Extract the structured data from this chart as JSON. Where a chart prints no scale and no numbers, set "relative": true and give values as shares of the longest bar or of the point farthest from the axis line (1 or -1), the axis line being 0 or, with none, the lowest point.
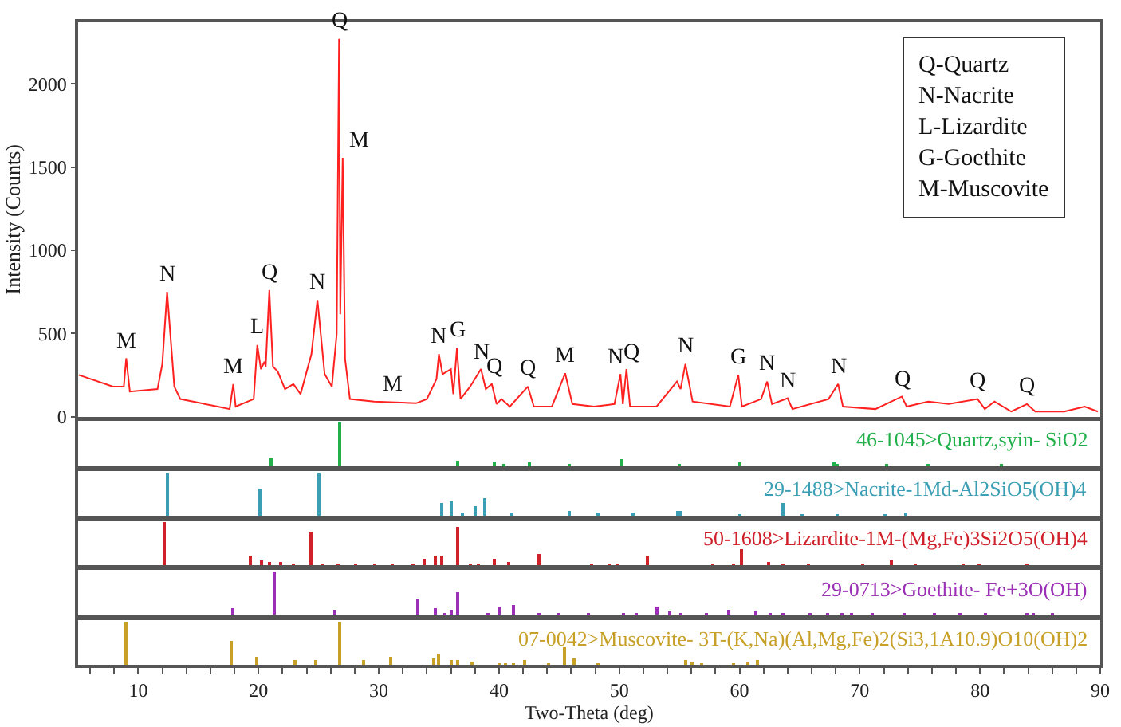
{
  "chart_data": [
    {
      "type": "line",
      "ylabel": "Intensity (Counts)",
      "xlim": [
        5,
        90
      ],
      "ylim": [
        0,
        2370
      ],
      "yticks": [
        0,
        500,
        1000,
        1500,
        2000
      ],
      "tick_labels": "y",
      "marker": "none",
      "line_style": "solid",
      "x": [
        5.05,
        7.9,
        8.8,
        9.0,
        9.3,
        11.6,
        12.0,
        12.4,
        13.0,
        13.5,
        16.6,
        17.6,
        17.9,
        18.1,
        19.6,
        19.9,
        20.2,
        20.5,
        20.6,
        20.9,
        21.2,
        21.6,
        22.2,
        22.9,
        23.5,
        24.4,
        24.9,
        25.5,
        26.1,
        26.5,
        26.7,
        26.8,
        27.0,
        27.2,
        27.6,
        29.6,
        33.1,
        34.0,
        34.8,
        35.0,
        35.3,
        36.0,
        36.2,
        36.5,
        36.8,
        37.6,
        38.5,
        38.9,
        39.4,
        39.8,
        40.2,
        40.9,
        42.4,
        42.9,
        44.4,
        45.5,
        46.1,
        47.9,
        49.6,
        50.1,
        50.3,
        50.6,
        50.9,
        53.1,
        54.8,
        55.1,
        55.5,
        56.1,
        59.2,
        59.9,
        60.2,
        61.8,
        62.3,
        62.7,
        64.0,
        64.4,
        67.4,
        68.2,
        68.6,
        71.3,
        73.5,
        73.9,
        75.7,
        77.4,
        79.8,
        80.4,
        81.2,
        82.6,
        83.9,
        84.6,
        87.0,
        88.7,
        89.8
      ],
      "series": [
        {
          "color": "#ff2020",
          "values": [
            250,
            180,
            180,
            350,
            150,
            165,
            315,
            750,
            180,
            105,
            60,
            45,
            195,
            60,
            105,
            430,
            285,
            330,
            300,
            760,
            300,
            270,
            165,
            195,
            135,
            375,
            700,
            255,
            180,
            495,
            2270,
            615,
            1555,
            345,
            105,
            90,
            80,
            105,
            225,
            375,
            255,
            285,
            135,
            410,
            105,
            180,
            285,
            165,
            195,
            75,
            105,
            60,
            180,
            60,
            60,
            260,
            75,
            60,
            75,
            255,
            75,
            285,
            60,
            60,
            210,
            165,
            315,
            90,
            60,
            250,
            60,
            105,
            210,
            75,
            110,
            45,
            105,
            195,
            60,
            45,
            120,
            60,
            90,
            75,
            105,
            45,
            90,
            30,
            75,
            30,
            30,
            60,
            30
          ]
        }
      ],
      "annotations": [
        {
          "text": "M",
          "x": 9.0,
          "y": 350
        },
        {
          "text": "N",
          "x": 12.4,
          "y": 750
        },
        {
          "text": "M",
          "x": 17.9,
          "y": 195
        },
        {
          "text": "L",
          "x": 19.9,
          "y": 430
        },
        {
          "text": "Q",
          "x": 20.9,
          "y": 760
        },
        {
          "text": "N",
          "x": 24.9,
          "y": 700
        },
        {
          "text": "Q",
          "x": 26.7,
          "y": 2270
        },
        {
          "text": "M",
          "x": 27.0,
          "y": 1555
        },
        {
          "text": "M",
          "x": 31.2,
          "y": 90
        },
        {
          "text": "N",
          "x": 35.0,
          "y": 375
        },
        {
          "text": "G",
          "x": 36.5,
          "y": 410
        },
        {
          "text": "N",
          "x": 38.5,
          "y": 285
        },
        {
          "text": "Q",
          "x": 39.6,
          "y": 195
        },
        {
          "text": "Q",
          "x": 42.4,
          "y": 180
        },
        {
          "text": "M",
          "x": 45.5,
          "y": 260
        },
        {
          "text": "N",
          "x": 49.7,
          "y": 255
        },
        {
          "text": "Q",
          "x": 51.0,
          "y": 285
        },
        {
          "text": "N",
          "x": 55.5,
          "y": 315
        },
        {
          "text": "G",
          "x": 59.9,
          "y": 250
        },
        {
          "text": "N",
          "x": 62.3,
          "y": 210
        },
        {
          "text": "N",
          "x": 64.0,
          "y": 110
        },
        {
          "text": "N",
          "x": 68.2,
          "y": 195
        },
        {
          "text": "Q",
          "x": 73.5,
          "y": 120
        },
        {
          "text": "Q",
          "x": 79.8,
          "y": 105
        },
        {
          "text": "Q",
          "x": 83.9,
          "y": 75
        },
        "Q-Quartz\nN-Nacrite\nL-Lizardite\nG-Goethite\nM-Muscovite"
      ]
    },
    {
      "type": "bar",
      "relative": true,
      "xlim": [
        5,
        90
      ],
      "tick_labels": false,
      "annotations": [
        "46-1045>Quartz,syin- SiO2"
      ],
      "x": [
        21.1,
        26.8,
        36.6,
        39.6,
        40.4,
        42.6,
        45.9,
        50.2,
        55.0,
        60.0,
        67.9,
        68.2,
        72.2,
        75.7,
        81.8
      ],
      "series": [
        {
          "color": "#22b04a",
          "values": [
            0.2,
            1.0,
            0.1,
            0.08,
            0.05,
            0.07,
            0.05,
            0.15,
            0.05,
            0.08,
            0.08,
            0.06,
            0.03,
            0.04,
            0.03
          ]
        }
      ]
    },
    {
      "type": "bar",
      "relative": true,
      "xlim": [
        5,
        90
      ],
      "tick_labels": false,
      "annotations": [
        "29-1488>Nacrite-1Md-Al2SiO5(OH)4"
      ],
      "x": [
        12.5,
        20.2,
        25.1,
        35.2,
        36.1,
        37.0,
        38.0,
        38.8,
        41.1,
        45.9,
        48.2,
        51.2,
        54.9,
        55.2,
        60.0,
        63.6,
        65.2,
        68.1,
        72.1,
        73.8
      ],
      "series": [
        {
          "color": "#3a9fb5",
          "values": [
            1.0,
            0.61,
            1.0,
            0.28,
            0.33,
            0.09,
            0.24,
            0.4,
            0.09,
            0.12,
            0.07,
            0.07,
            0.12,
            0.12,
            0.04,
            0.3,
            0.04,
            0.05,
            0.05,
            0.08
          ]
        }
      ]
    },
    {
      "type": "bar",
      "relative": true,
      "xlim": [
        5,
        90
      ],
      "tick_labels": false,
      "annotations": [
        "50-1608>Lizardite-1M-(Mg,Fe)3Si2O5(OH)4"
      ],
      "x": [
        12.2,
        19.4,
        20.3,
        20.9,
        21.9,
        22.9,
        24.4,
        25.3,
        26.7,
        28.1,
        29.7,
        31.2,
        32.9,
        33.8,
        34.7,
        35.3,
        36.6,
        37.6,
        38.3,
        39.6,
        40.8,
        43.3,
        47.7,
        49.2,
        49.9,
        52.4,
        57.8,
        59.5,
        60.2,
        62.4,
        63.6,
        65.8,
        70.3,
        72.6,
        74.6,
        78.6,
        80.0,
        83.9
      ],
      "series": [
        {
          "color": "#d0202a",
          "values": [
            1.0,
            0.22,
            0.12,
            0.08,
            0.08,
            0.06,
            0.76,
            0.05,
            0.03,
            0.03,
            0.03,
            0.03,
            0.03,
            0.15,
            0.22,
            0.23,
            0.86,
            0.05,
            0.04,
            0.15,
            0.08,
            0.27,
            0.05,
            0.05,
            0.05,
            0.22,
            0.04,
            0.04,
            0.37,
            0.08,
            0.05,
            0.04,
            0.04,
            0.12,
            0.03,
            0.03,
            0.03,
            0.03
          ]
        }
      ]
    },
    {
      "type": "bar",
      "relative": true,
      "xlim": [
        5,
        90
      ],
      "tick_labels": false,
      "annotations": [
        "29-0713>Goethite- Fe+3O(OH)"
      ],
      "x": [
        17.9,
        21.3,
        26.4,
        33.3,
        34.7,
        35.5,
        36.1,
        36.6,
        39.1,
        40.0,
        41.2,
        43.3,
        45.0,
        47.4,
        50.4,
        51.4,
        53.2,
        54.2,
        55.2,
        57.3,
        59.1,
        61.4,
        62.6,
        63.7,
        65.9,
        67.4,
        68.6,
        69.4,
        71.1,
        73.7,
        76.2,
        78.4,
        80.5,
        83.9,
        84.5,
        86.0
      ],
      "series": [
        {
          "color": "#9b2fb5",
          "values": [
            0.16,
            1.0,
            0.12,
            0.38,
            0.16,
            0.06,
            0.1,
            0.52,
            0.04,
            0.19,
            0.22,
            0.04,
            0.04,
            0.04,
            0.05,
            0.04,
            0.2,
            0.07,
            0.04,
            0.04,
            0.1,
            0.07,
            0.04,
            0.04,
            0.04,
            0.03,
            0.04,
            0.03,
            0.03,
            0.03,
            0.03,
            0.03,
            0.03,
            0.04,
            0.04,
            0.03
          ]
        }
      ]
    },
    {
      "type": "bar",
      "relative": true,
      "xlim": [
        5,
        90
      ],
      "tick_labels": "x",
      "xlabel": "Two-Theta (deg)",
      "annotations": [
        "07-0042>Muscovite- 3T-(K,Na)(Al,Mg,Fe)2(Si3,1A10.9)O10(OH)2"
      ],
      "xticks": [
        {
          "value": 6,
          "label": null
        },
        {
          "value": 8,
          "label": null
        },
        10,
        {
          "value": 12,
          "label": null
        },
        {
          "value": 14,
          "label": null
        },
        {
          "value": 16,
          "label": null
        },
        {
          "value": 18,
          "label": null
        },
        20,
        {
          "value": 22,
          "label": null
        },
        {
          "value": 24,
          "label": null
        },
        {
          "value": 26,
          "label": null
        },
        {
          "value": 28,
          "label": null
        },
        30,
        {
          "value": 32,
          "label": null
        },
        {
          "value": 34,
          "label": null
        },
        {
          "value": 36,
          "label": null
        },
        {
          "value": 38,
          "label": null
        },
        40,
        {
          "value": 42,
          "label": null
        },
        {
          "value": 44,
          "label": null
        },
        {
          "value": 46,
          "label": null
        },
        {
          "value": 48,
          "label": null
        },
        50,
        {
          "value": 52,
          "label": null
        },
        {
          "value": 54,
          "label": null
        },
        {
          "value": 56,
          "label": null
        },
        {
          "value": 58,
          "label": null
        },
        60,
        {
          "value": 62,
          "label": null
        },
        {
          "value": 64,
          "label": null
        },
        {
          "value": 66,
          "label": null
        },
        {
          "value": 68,
          "label": null
        },
        70,
        {
          "value": 72,
          "label": null
        },
        {
          "value": 74,
          "label": null
        },
        {
          "value": 76,
          "label": null
        },
        {
          "value": 78,
          "label": null
        },
        80,
        {
          "value": 82,
          "label": null
        },
        {
          "value": 84,
          "label": null
        },
        {
          "value": 86,
          "label": null
        },
        {
          "value": 88,
          "label": null
        },
        90
      ],
      "x": [
        9.0,
        17.8,
        19.9,
        23.1,
        24.8,
        26.8,
        28.7,
        31.0,
        34.6,
        35.0,
        36.0,
        36.6,
        37.8,
        40.0,
        40.6,
        41.2,
        42.2,
        44.1,
        45.5,
        46.2,
        48.2,
        55.6,
        56.1,
        56.9,
        59.5,
        60.7,
        61.5
      ],
      "series": [
        {
          "color": "#c8a028",
          "values": [
            1.0,
            0.56,
            0.2,
            0.12,
            0.1,
            1.0,
            0.12,
            0.18,
            0.15,
            0.25,
            0.1,
            0.1,
            0.08,
            0.06,
            0.04,
            0.04,
            0.12,
            0.05,
            0.4,
            0.15,
            0.05,
            0.12,
            0.07,
            0.05,
            0.06,
            0.07,
            0.12
          ]
        }
      ]
    }
  ]
}
